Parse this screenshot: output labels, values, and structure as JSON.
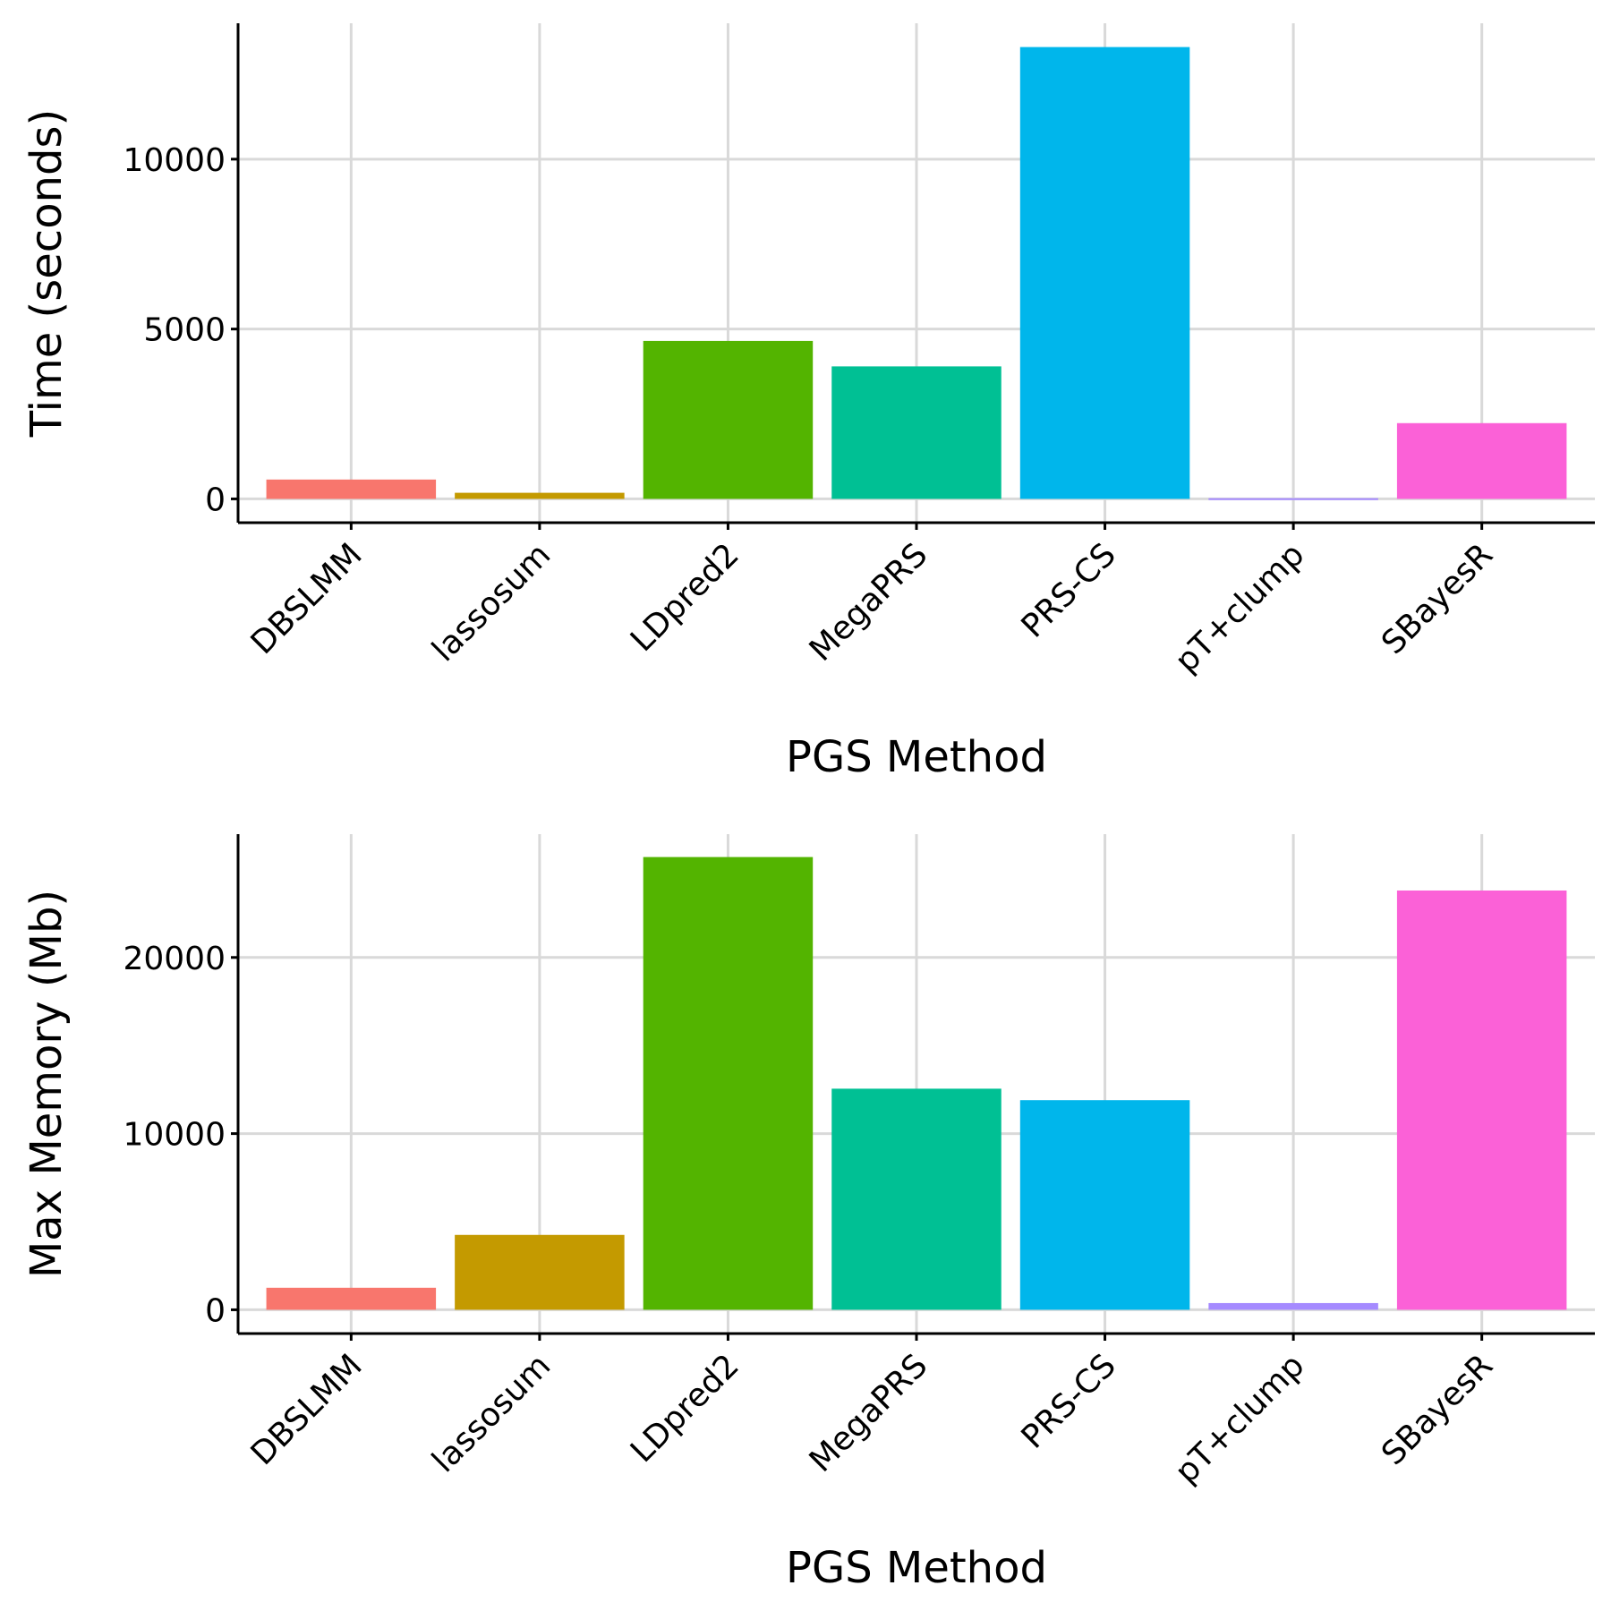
{
  "chart_data": [
    {
      "type": "bar",
      "categories": [
        "DBSLMM",
        "lassosum",
        "LDpred2",
        "MegaPRS",
        "PRS-CS",
        "pT+clump",
        "SBayesR"
      ],
      "values": [
        570,
        180,
        4650,
        3900,
        13300,
        20,
        2230
      ],
      "colors": [
        "#F8766D",
        "#C49A00",
        "#53B400",
        "#00C094",
        "#00B6EB",
        "#A58AFF",
        "#FB61D7"
      ],
      "xlabel": "PGS Method",
      "ylabel": "Time (seconds)",
      "yticks": [
        0,
        5000,
        10000
      ],
      "ylim": [
        -700,
        14000
      ],
      "grid": true,
      "legend": "none"
    },
    {
      "type": "bar",
      "categories": [
        "DBSLMM",
        "lassosum",
        "LDpred2",
        "MegaPRS",
        "PRS-CS",
        "pT+clump",
        "SBayesR"
      ],
      "values": [
        1250,
        4250,
        25700,
        12550,
        11900,
        380,
        23800
      ],
      "colors": [
        "#F8766D",
        "#C49A00",
        "#53B400",
        "#00C094",
        "#00B6EB",
        "#A58AFF",
        "#FB61D7"
      ],
      "xlabel": "PGS Method",
      "ylabel": "Max Memory (Mb)",
      "yticks": [
        0,
        10000,
        20000
      ],
      "ylim": [
        -1350,
        27000
      ],
      "grid": true,
      "legend": "none"
    }
  ]
}
